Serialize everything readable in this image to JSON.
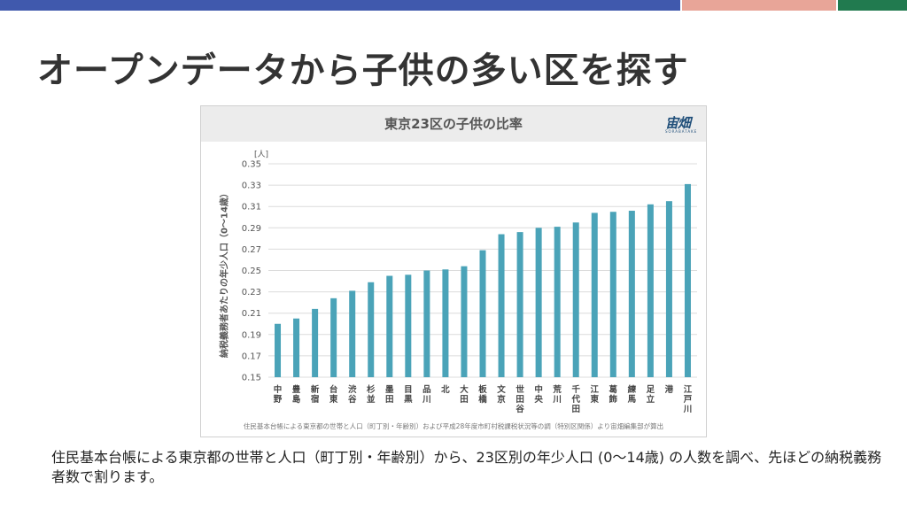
{
  "topbar": {
    "colors": [
      "#4059ad",
      "#e8a598",
      "#217a4f"
    ]
  },
  "slide": {
    "title": "オープンデータから子供の多い区を探す",
    "caption": "住民基本台帳による東京都の世帯と人口（町丁別・年齢別）から、23区別の年少人口 (0〜14歳) の人数を調べ、先ほどの納税義務者数で割ります。"
  },
  "figure": {
    "logo": "宙畑",
    "logo_sub": "SORABATAKE"
  },
  "chart_data": {
    "type": "bar",
    "title": "東京23区の子供の比率",
    "unit": "[人]",
    "ylabel": "納税義務者あたりの年少人口（0〜14歳）",
    "ylim": [
      0.15,
      0.35
    ],
    "yticks": [
      "0.35",
      "0.33",
      "0.31",
      "0.29",
      "0.27",
      "0.25",
      "0.23",
      "0.21",
      "0.19",
      "0.17",
      "0.15"
    ],
    "grid": true,
    "bar_color": "#4aa3b8",
    "categories": [
      "中野",
      "豊島",
      "新宿",
      "台東",
      "渋谷",
      "杉並",
      "墨田",
      "目黒",
      "品川",
      "北",
      "大田",
      "板橋",
      "文京",
      "世田谷",
      "中央",
      "荒川",
      "千代田",
      "江東",
      "葛飾",
      "練馬",
      "足立",
      "港",
      "江戸川"
    ],
    "values": [
      0.2,
      0.205,
      0.214,
      0.224,
      0.231,
      0.239,
      0.245,
      0.246,
      0.25,
      0.251,
      0.254,
      0.269,
      0.284,
      0.286,
      0.29,
      0.291,
      0.295,
      0.304,
      0.305,
      0.306,
      0.312,
      0.315,
      0.331
    ],
    "source": "住民基本台帳による東京都の世帯と人口（町丁別・年齢別）および平成28年度市町村税課税状況等の調（特別区関係）より宙畑編集部が算出"
  }
}
